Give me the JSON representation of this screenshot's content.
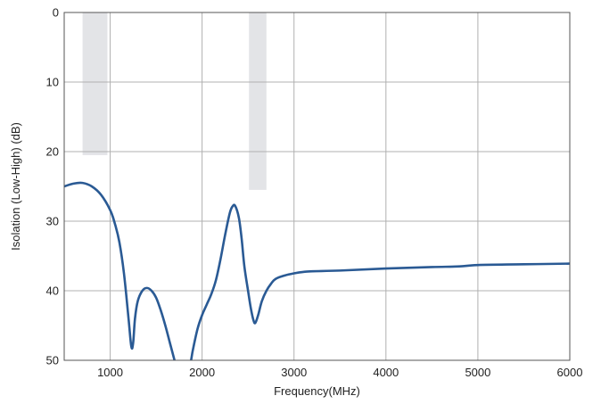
{
  "chart_data": {
    "type": "line",
    "xlabel": "Frequency(MHz)",
    "ylabel": "Isolation (Low-High) (dB)",
    "xlim": [
      500,
      6000
    ],
    "ylim": [
      0,
      50
    ],
    "y_inverted": true,
    "x_ticks": [
      1000,
      2000,
      3000,
      4000,
      5000,
      6000
    ],
    "y_ticks": [
      0,
      10,
      20,
      30,
      40,
      50
    ],
    "grid": true,
    "colors": {
      "line": "#2a5a94",
      "band": "#e3e4e7",
      "grid": "#b0b0b0",
      "frame": "#555555"
    },
    "shaded_bands": [
      {
        "x_range": [
          700,
          970
        ],
        "y_range": [
          0,
          20.5
        ]
      },
      {
        "x_range": [
          2510,
          2700
        ],
        "y_range": [
          0,
          25.5
        ]
      }
    ],
    "series": [
      {
        "color": "#2a5a94",
        "segments": [
          {
            "x": [
              500,
              600,
              700,
              800,
              900,
              1000,
              1050,
              1100,
              1150,
              1200,
              1230,
              1250,
              1270,
              1300,
              1350,
              1400,
              1450,
              1500,
              1550,
              1600,
              1650,
              1700,
              1720
            ],
            "y": [
              25.0,
              24.6,
              24.5,
              25.0,
              26.2,
              28.4,
              30.3,
              33.0,
              37.5,
              44.0,
              48.0,
              47.5,
              44.0,
              41.5,
              40.0,
              39.6,
              40.0,
              41.0,
              42.8,
              45.0,
              47.5,
              50.0,
              51.0
            ]
          },
          {
            "x": [
              1860,
              1880,
              1900,
              1950,
              2000,
              2050,
              2100,
              2150,
              2200,
              2250,
              2300,
              2330,
              2360,
              2400,
              2430,
              2460,
              2500,
              2530,
              2560,
              2580,
              2610,
              2650,
              2700,
              2750,
              2800,
              2900,
              3000,
              3100,
              3200,
              3500,
              4000,
              4500,
              4800,
              5000,
              5500,
              6000
            ],
            "y": [
              51.0,
              50.0,
              48.5,
              45.5,
              43.5,
              42.0,
              40.5,
              38.5,
              35.5,
              32.0,
              28.9,
              27.9,
              27.8,
              29.5,
              32.5,
              36.5,
              40.0,
              42.5,
              44.3,
              44.6,
              43.5,
              41.5,
              40.0,
              39.0,
              38.3,
              37.8,
              37.5,
              37.3,
              37.2,
              37.1,
              36.8,
              36.6,
              36.5,
              36.3,
              36.2,
              36.1
            ]
          }
        ]
      }
    ]
  }
}
